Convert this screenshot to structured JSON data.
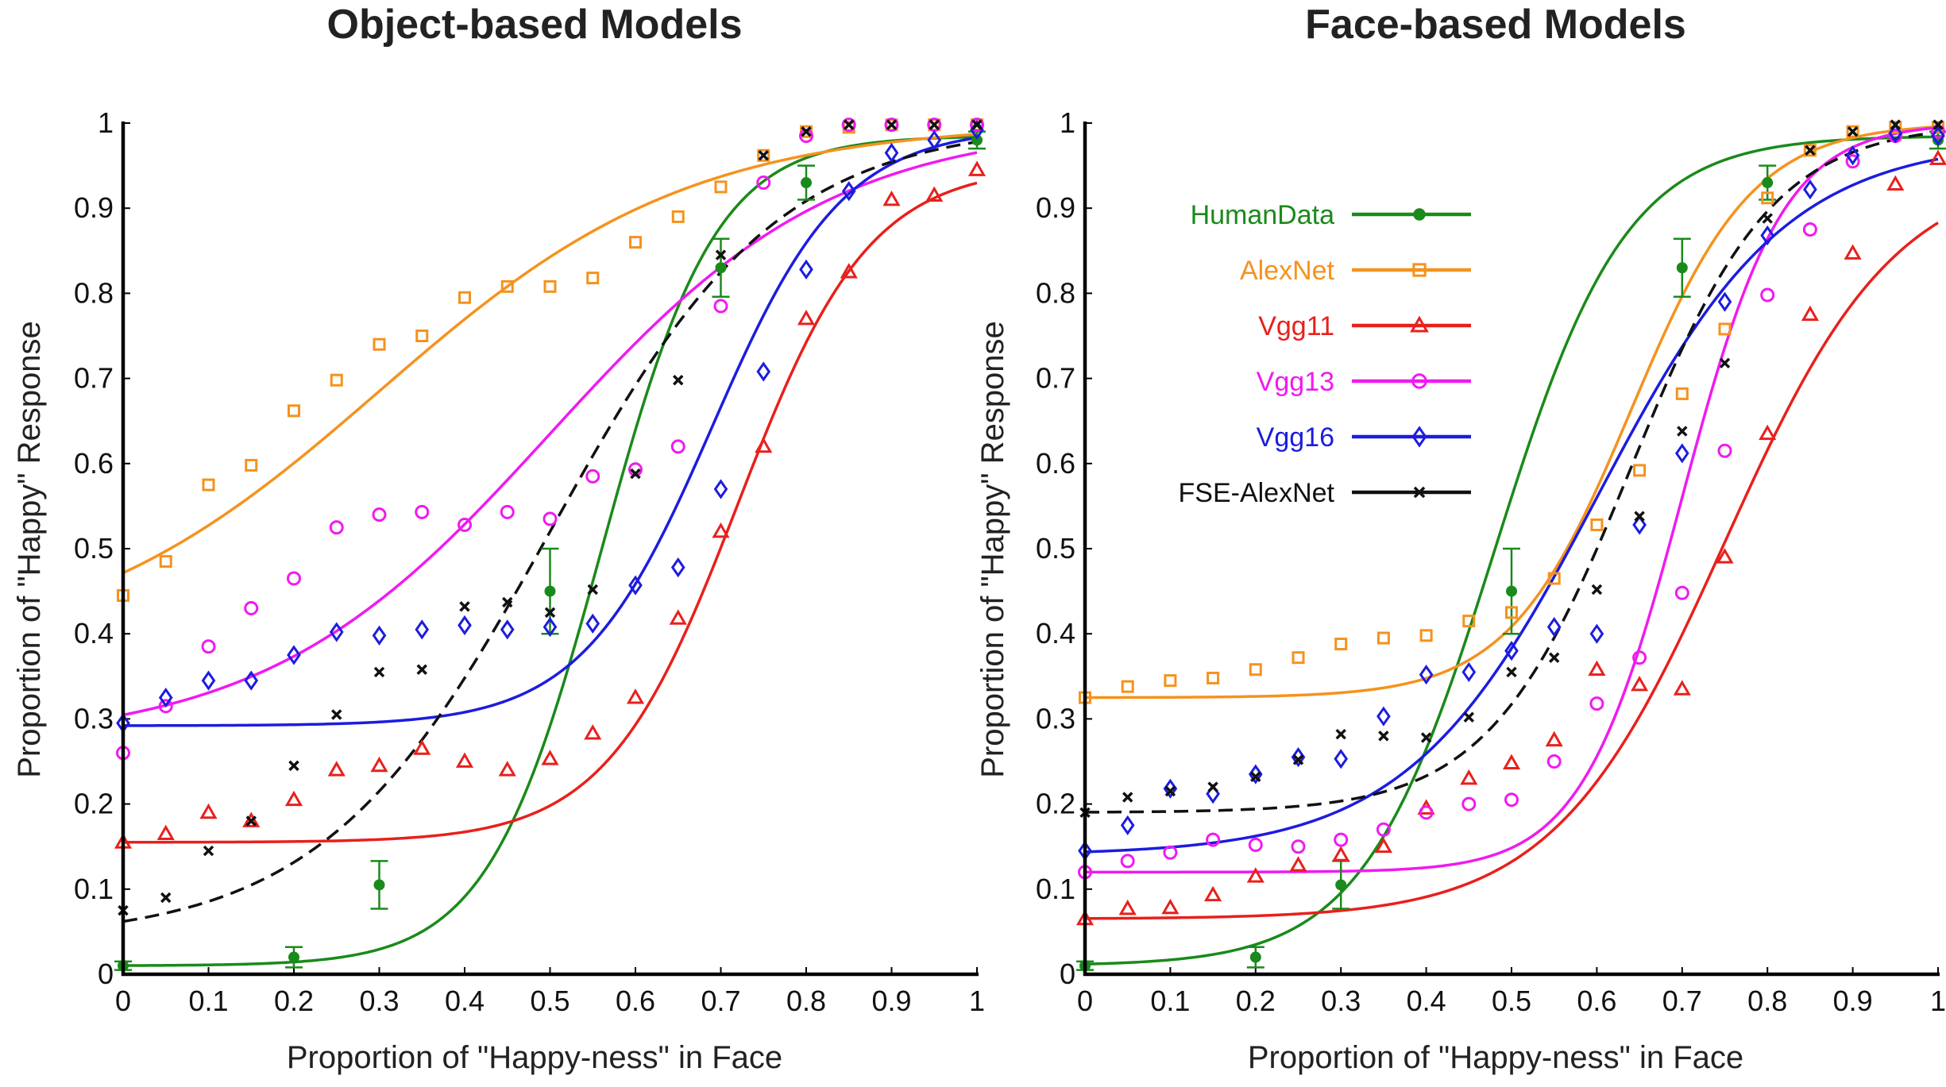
{
  "chart_data": [
    {
      "type": "scatter",
      "title": "Object-based Models",
      "xlabel": "Proportion of \"Happy-ness\" in Face",
      "ylabel": "Proportion of \"Happy\" Response",
      "xlim": [
        0,
        1
      ],
      "ylim": [
        0,
        1
      ],
      "x_ticks": [
        "0",
        "0.1",
        "0.2",
        "0.3",
        "0.4",
        "0.5",
        "0.6",
        "0.7",
        "0.8",
        "0.9",
        "1"
      ],
      "y_ticks": [
        "0",
        "0.1",
        "0.2",
        "0.3",
        "0.4",
        "0.5",
        "0.6",
        "0.7",
        "0.8",
        "0.9",
        "1"
      ],
      "series": [
        {
          "name": "HumanData",
          "color": "#1a8a1a",
          "marker": "dot",
          "x": [
            0,
            0.2,
            0.3,
            0.5,
            0.7,
            0.8,
            1.0
          ],
          "values": [
            0.01,
            0.02,
            0.105,
            0.45,
            0.83,
            0.93,
            0.98
          ],
          "error": [
            0.005,
            0.012,
            0.028,
            0.05,
            0.034,
            0.02,
            0.01
          ],
          "fit": {
            "base": 0.01,
            "top": 0.985,
            "mid": 0.56,
            "slope": 15
          }
        },
        {
          "name": "AlexNet",
          "color": "#f5921e",
          "marker": "square",
          "x": [
            0,
            0.05,
            0.1,
            0.15,
            0.2,
            0.25,
            0.3,
            0.35,
            0.4,
            0.45,
            0.5,
            0.55,
            0.6,
            0.65,
            0.7,
            0.75,
            0.8,
            0.85,
            0.9,
            0.95,
            1.0
          ],
          "values": [
            0.445,
            0.485,
            0.575,
            0.598,
            0.662,
            0.698,
            0.74,
            0.75,
            0.795,
            0.808,
            0.808,
            0.818,
            0.86,
            0.89,
            0.925,
            0.962,
            0.99,
            0.995,
            0.998,
            0.998,
            0.998
          ],
          "fit": {
            "base": 0.37,
            "top": 1.0,
            "mid": 0.3,
            "slope": 5.5
          }
        },
        {
          "name": "Vgg11",
          "color": "#e8201c",
          "marker": "triangle",
          "x": [
            0,
            0.05,
            0.1,
            0.15,
            0.2,
            0.25,
            0.3,
            0.35,
            0.4,
            0.45,
            0.5,
            0.55,
            0.6,
            0.65,
            0.7,
            0.75,
            0.8,
            0.85,
            0.9,
            0.95,
            1.0
          ],
          "values": [
            0.155,
            0.165,
            0.19,
            0.18,
            0.205,
            0.24,
            0.245,
            0.265,
            0.25,
            0.24,
            0.253,
            0.283,
            0.325,
            0.418,
            0.52,
            0.62,
            0.77,
            0.825,
            0.91,
            0.915,
            0.945
          ],
          "fit": {
            "base": 0.155,
            "top": 0.95,
            "mid": 0.72,
            "slope": 13
          }
        },
        {
          "name": "Vgg13",
          "color": "#f01af0",
          "marker": "circle",
          "x": [
            0,
            0.05,
            0.1,
            0.15,
            0.2,
            0.25,
            0.3,
            0.35,
            0.4,
            0.45,
            0.5,
            0.55,
            0.6,
            0.65,
            0.7,
            0.75,
            0.8,
            0.85,
            0.9,
            0.95,
            1.0
          ],
          "values": [
            0.26,
            0.315,
            0.385,
            0.43,
            0.465,
            0.525,
            0.54,
            0.543,
            0.528,
            0.543,
            0.535,
            0.585,
            0.593,
            0.62,
            0.785,
            0.93,
            0.985,
            0.998,
            0.998,
            0.998,
            0.998
          ],
          "fit": {
            "base": 0.27,
            "top": 1.0,
            "mid": 0.5,
            "slope": 6
          }
        },
        {
          "name": "Vgg16",
          "color": "#1c1ce0",
          "marker": "diamond",
          "x": [
            0,
            0.05,
            0.1,
            0.15,
            0.2,
            0.25,
            0.3,
            0.35,
            0.4,
            0.45,
            0.5,
            0.55,
            0.6,
            0.65,
            0.7,
            0.75,
            0.8,
            0.85,
            0.9,
            0.95,
            1.0
          ],
          "values": [
            0.295,
            0.325,
            0.345,
            0.345,
            0.375,
            0.402,
            0.398,
            0.405,
            0.41,
            0.405,
            0.408,
            0.412,
            0.457,
            0.478,
            0.57,
            0.708,
            0.828,
            0.92,
            0.965,
            0.98,
            0.992
          ],
          "fit": {
            "base": 0.292,
            "top": 0.995,
            "mid": 0.69,
            "slope": 13
          }
        },
        {
          "name": "FSE-AlexNet",
          "color": "#111111",
          "marker": "x",
          "dashed": true,
          "x": [
            0,
            0.05,
            0.1,
            0.15,
            0.2,
            0.25,
            0.3,
            0.35,
            0.4,
            0.45,
            0.5,
            0.55,
            0.6,
            0.65,
            0.7,
            0.75,
            0.8,
            0.85,
            0.9,
            0.95,
            1.0
          ],
          "values": [
            0.075,
            0.09,
            0.145,
            0.18,
            0.245,
            0.305,
            0.355,
            0.358,
            0.432,
            0.437,
            0.425,
            0.452,
            0.588,
            0.698,
            0.845,
            0.962,
            0.99,
            0.998,
            0.998,
            0.998,
            0.998
          ],
          "fit": {
            "base": 0.04,
            "top": 1.0,
            "mid": 0.5,
            "slope": 7.5
          }
        }
      ]
    },
    {
      "type": "scatter",
      "title": "Face-based Models",
      "xlabel": "Proportion of \"Happy-ness\" in Face",
      "ylabel": "Proportion of \"Happy\" Response",
      "xlim": [
        0,
        1
      ],
      "ylim": [
        0,
        1
      ],
      "x_ticks": [
        "0",
        "0.1",
        "0.2",
        "0.3",
        "0.4",
        "0.5",
        "0.6",
        "0.7",
        "0.8",
        "0.9",
        "1"
      ],
      "y_ticks": [
        "0",
        "0.1",
        "0.2",
        "0.3",
        "0.4",
        "0.5",
        "0.6",
        "0.7",
        "0.8",
        "0.9",
        "1"
      ],
      "legend": "top-left",
      "series": [
        {
          "name": "HumanData",
          "color": "#1a8a1a",
          "marker": "dot",
          "x": [
            0,
            0.2,
            0.3,
            0.5,
            0.7,
            0.8,
            1.0
          ],
          "values": [
            0.01,
            0.02,
            0.105,
            0.45,
            0.83,
            0.93,
            0.98
          ],
          "error": [
            0.005,
            0.012,
            0.028,
            0.05,
            0.034,
            0.02,
            0.01
          ],
          "fit": {
            "base": 0.01,
            "top": 0.985,
            "mid": 0.48,
            "slope": 13
          }
        },
        {
          "name": "AlexNet",
          "color": "#f5921e",
          "marker": "square",
          "x": [
            0,
            0.05,
            0.1,
            0.15,
            0.2,
            0.25,
            0.3,
            0.35,
            0.4,
            0.45,
            0.5,
            0.55,
            0.6,
            0.65,
            0.7,
            0.75,
            0.8,
            0.85,
            0.9,
            0.95,
            1.0
          ],
          "values": [
            0.325,
            0.338,
            0.345,
            0.348,
            0.358,
            0.372,
            0.388,
            0.395,
            0.398,
            0.415,
            0.425,
            0.465,
            0.528,
            0.592,
            0.682,
            0.758,
            0.912,
            0.968,
            0.99,
            0.995,
            0.995
          ],
          "fit": {
            "base": 0.325,
            "top": 1.0,
            "mid": 0.64,
            "slope": 14
          }
        },
        {
          "name": "Vgg11",
          "color": "#e8201c",
          "marker": "triangle",
          "x": [
            0,
            0.05,
            0.1,
            0.15,
            0.2,
            0.25,
            0.3,
            0.35,
            0.4,
            0.45,
            0.5,
            0.55,
            0.6,
            0.65,
            0.7,
            0.75,
            0.8,
            0.85,
            0.9,
            0.95,
            1.0
          ],
          "values": [
            0.065,
            0.077,
            0.078,
            0.093,
            0.115,
            0.128,
            0.14,
            0.15,
            0.195,
            0.23,
            0.248,
            0.275,
            0.358,
            0.34,
            0.335,
            0.49,
            0.635,
            0.775,
            0.847,
            0.928,
            0.958
          ],
          "fit": {
            "base": 0.065,
            "top": 0.95,
            "mid": 0.75,
            "slope": 10
          }
        },
        {
          "name": "Vgg13",
          "color": "#f01af0",
          "marker": "circle",
          "x": [
            0,
            0.05,
            0.1,
            0.15,
            0.2,
            0.25,
            0.3,
            0.35,
            0.4,
            0.45,
            0.5,
            0.55,
            0.6,
            0.65,
            0.7,
            0.75,
            0.8,
            0.85,
            0.9,
            0.95,
            1.0
          ],
          "values": [
            0.12,
            0.133,
            0.143,
            0.158,
            0.152,
            0.15,
            0.158,
            0.17,
            0.19,
            0.2,
            0.205,
            0.25,
            0.318,
            0.372,
            0.448,
            0.615,
            0.798,
            0.875,
            0.955,
            0.985,
            0.99
          ],
          "fit": {
            "base": 0.12,
            "top": 1.0,
            "mid": 0.7,
            "slope": 17
          }
        },
        {
          "name": "Vgg16",
          "color": "#1c1ce0",
          "marker": "diamond",
          "x": [
            0,
            0.05,
            0.1,
            0.15,
            0.2,
            0.25,
            0.3,
            0.35,
            0.4,
            0.45,
            0.5,
            0.55,
            0.6,
            0.65,
            0.7,
            0.75,
            0.8,
            0.85,
            0.9,
            0.95,
            1.0
          ],
          "values": [
            0.145,
            0.175,
            0.218,
            0.212,
            0.235,
            0.255,
            0.253,
            0.303,
            0.352,
            0.355,
            0.38,
            0.408,
            0.4,
            0.528,
            0.612,
            0.79,
            0.868,
            0.922,
            0.962,
            0.988,
            0.985
          ],
          "fit": {
            "base": 0.14,
            "top": 0.98,
            "mid": 0.6,
            "slope": 9
          }
        },
        {
          "name": "FSE-AlexNet",
          "color": "#111111",
          "marker": "x",
          "dashed": true,
          "x": [
            0,
            0.05,
            0.1,
            0.15,
            0.2,
            0.25,
            0.3,
            0.35,
            0.4,
            0.45,
            0.5,
            0.55,
            0.6,
            0.65,
            0.7,
            0.75,
            0.8,
            0.85,
            0.9,
            0.95,
            1.0
          ],
          "values": [
            0.19,
            0.208,
            0.215,
            0.22,
            0.232,
            0.252,
            0.282,
            0.28,
            0.278,
            0.302,
            0.355,
            0.372,
            0.452,
            0.538,
            0.638,
            0.718,
            0.888,
            0.968,
            0.99,
            0.998,
            0.998
          ],
          "fit": {
            "base": 0.19,
            "top": 1.0,
            "mid": 0.64,
            "slope": 12
          }
        }
      ]
    }
  ]
}
